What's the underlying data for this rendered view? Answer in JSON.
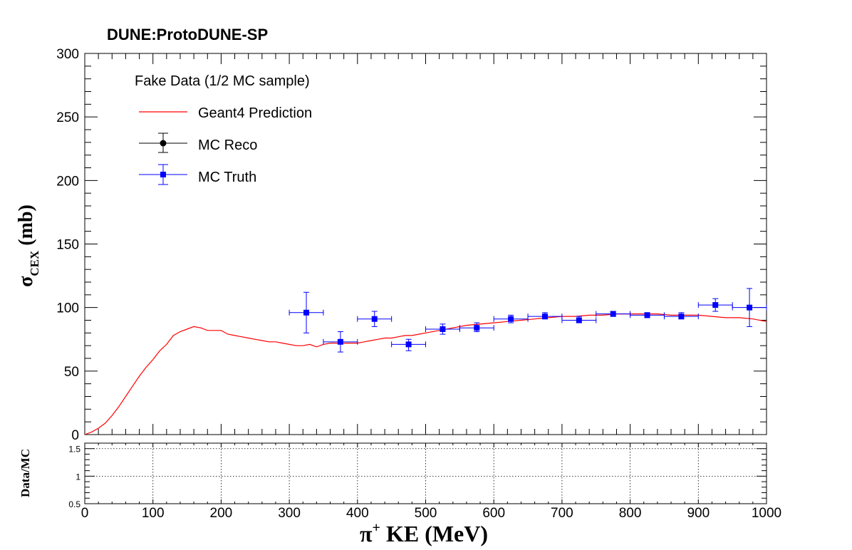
{
  "chart_data": [
    {
      "panel": "main",
      "type": "scatter",
      "title": "DUNE:ProtoDUNE-SP",
      "xlabel": {
        "base": "π",
        "sup": "+",
        "rest": " KE (MeV)"
      },
      "ylabel": {
        "base": "σ",
        "sub": "CEX",
        "rest": "  (mb)"
      },
      "xlim": [
        0,
        1000
      ],
      "ylim": [
        0,
        300
      ],
      "xticks": [
        0,
        100,
        200,
        300,
        400,
        500,
        600,
        700,
        800,
        900,
        1000
      ],
      "yticks": [
        0,
        50,
        100,
        150,
        200,
        250,
        300
      ],
      "grid": false,
      "legend": {
        "placement": "top-left",
        "header": "Fake Data (1/2 MC sample)",
        "entries": [
          {
            "label": "Geant4 Prediction",
            "style": "line",
            "color": "#ff0000"
          },
          {
            "label": "MC Reco",
            "style": "marker-circle",
            "color": "#000000"
          },
          {
            "label": "MC Truth",
            "style": "marker-square",
            "color": "#0000ff"
          }
        ]
      },
      "series": [
        {
          "name": "Geant4 Prediction",
          "kind": "line",
          "color": "#ff0000",
          "x": [
            0,
            10,
            20,
            30,
            40,
            50,
            60,
            70,
            80,
            90,
            100,
            110,
            120,
            130,
            140,
            150,
            160,
            170,
            180,
            190,
            200,
            210,
            220,
            230,
            240,
            250,
            260,
            270,
            280,
            290,
            300,
            310,
            320,
            330,
            340,
            350,
            360,
            370,
            380,
            390,
            400,
            410,
            420,
            430,
            440,
            450,
            460,
            470,
            480,
            490,
            500,
            520,
            540,
            560,
            580,
            600,
            620,
            640,
            660,
            680,
            700,
            720,
            740,
            760,
            780,
            800,
            820,
            840,
            860,
            880,
            900,
            920,
            940,
            960,
            980,
            1000
          ],
          "y": [
            0,
            2,
            5,
            9,
            15,
            22,
            30,
            38,
            46,
            53,
            59,
            66,
            71,
            78,
            81,
            83,
            85,
            84,
            82,
            82,
            82,
            79,
            78,
            77,
            76,
            75,
            74,
            73,
            73,
            72,
            71,
            70,
            70,
            71,
            69,
            71,
            72,
            72,
            72,
            72,
            72,
            73,
            74,
            75,
            76,
            76,
            77,
            78,
            78,
            79,
            80,
            82,
            84,
            86,
            87,
            88,
            89,
            90,
            91,
            92,
            93,
            93,
            94,
            94,
            95,
            95,
            95,
            95,
            94,
            94,
            94,
            93,
            92,
            92,
            91,
            89
          ]
        },
        {
          "name": "MC Truth",
          "kind": "points",
          "marker": "square",
          "color": "#0000ff",
          "points": [
            {
              "x": 325,
              "y": 96,
              "xerr": 25,
              "ylo": 80,
              "yhi": 112
            },
            {
              "x": 375,
              "y": 73,
              "xerr": 25,
              "ylo": 65,
              "yhi": 81
            },
            {
              "x": 425,
              "y": 91,
              "xerr": 25,
              "ylo": 85,
              "yhi": 97
            },
            {
              "x": 475,
              "y": 71,
              "xerr": 25,
              "ylo": 66,
              "yhi": 75
            },
            {
              "x": 525,
              "y": 83,
              "xerr": 25,
              "ylo": 79,
              "yhi": 87
            },
            {
              "x": 575,
              "y": 84,
              "xerr": 25,
              "ylo": 81,
              "yhi": 88
            },
            {
              "x": 625,
              "y": 91,
              "xerr": 25,
              "ylo": 88,
              "yhi": 94
            },
            {
              "x": 675,
              "y": 93,
              "xerr": 25,
              "ylo": 91,
              "yhi": 96
            },
            {
              "x": 725,
              "y": 90,
              "xerr": 25,
              "ylo": 88,
              "yhi": 93
            },
            {
              "x": 775,
              "y": 95,
              "xerr": 25,
              "ylo": 93,
              "yhi": 97
            },
            {
              "x": 825,
              "y": 94,
              "xerr": 25,
              "ylo": 92,
              "yhi": 96
            },
            {
              "x": 875,
              "y": 93,
              "xerr": 25,
              "ylo": 91,
              "yhi": 96
            },
            {
              "x": 925,
              "y": 102,
              "xerr": 25,
              "ylo": 97,
              "yhi": 107
            },
            {
              "x": 975,
              "y": 100,
              "xerr": 25,
              "ylo": 85,
              "yhi": 115
            }
          ]
        }
      ]
    },
    {
      "panel": "ratio",
      "type": "scatter",
      "ylabel": "Data/MC",
      "xlim": [
        0,
        1000
      ],
      "ylim": [
        0.5,
        1.6
      ],
      "yticks": [
        0.5,
        1,
        1.5
      ],
      "xgrid": [
        100,
        200,
        300,
        400,
        500,
        600,
        700,
        800,
        900
      ],
      "ygrid": [
        1,
        1.5
      ],
      "grid": true,
      "series": []
    }
  ]
}
